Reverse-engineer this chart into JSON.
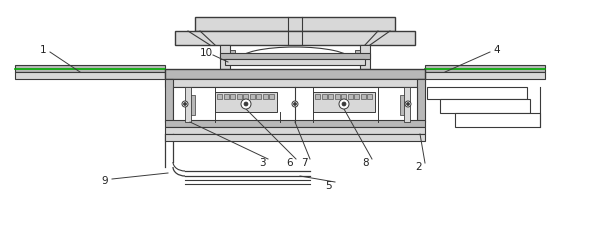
{
  "bg_color": "#ffffff",
  "lc": "#3a3a3a",
  "gc": "#b8b8b8",
  "lgc": "#d8d8d8",
  "grn": "#00aa00",
  "figsize": [
    5.9,
    2.27
  ],
  "dpi": 100
}
